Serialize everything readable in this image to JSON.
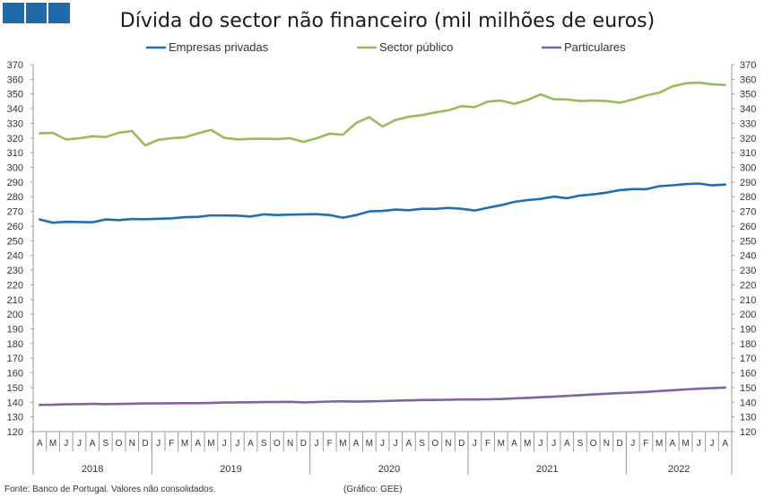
{
  "colors": {
    "logo": "#1f6aa8",
    "empresas": "#1f6fb2",
    "sector": "#9bbb59",
    "particulares": "#8064a2",
    "axis": "#999999"
  },
  "footer": {
    "source": "Fonte: Banco de Portugal. Valores não consolidados.",
    "credit": "(Gráfico: GEE)"
  },
  "chart_data": {
    "type": "line",
    "title": "Dívida do sector não financeiro (mil milhões de euros)",
    "xlabel": "",
    "ylabel": "",
    "ylim": [
      120,
      370
    ],
    "yticks": [
      120,
      130,
      140,
      150,
      160,
      170,
      180,
      190,
      200,
      210,
      220,
      230,
      240,
      250,
      260,
      270,
      280,
      290,
      300,
      310,
      320,
      330,
      340,
      350,
      360,
      370
    ],
    "grid": false,
    "legend": "top",
    "x": [
      "A",
      "M",
      "J",
      "J",
      "A",
      "S",
      "O",
      "N",
      "D",
      "J",
      "F",
      "M",
      "A",
      "M",
      "J",
      "J",
      "A",
      "S",
      "O",
      "N",
      "D",
      "J",
      "F",
      "M",
      "A",
      "M",
      "J",
      "J",
      "A",
      "S",
      "O",
      "N",
      "D",
      "J",
      "F",
      "M",
      "A",
      "M",
      "J",
      "J",
      "A",
      "S",
      "O",
      "N",
      "D",
      "J",
      "F",
      "M",
      "A",
      "M",
      "J",
      "J",
      "A"
    ],
    "years": [
      {
        "label": "2018",
        "start": 0,
        "end": 8
      },
      {
        "label": "2019",
        "start": 9,
        "end": 20
      },
      {
        "label": "2020",
        "start": 21,
        "end": 32
      },
      {
        "label": "2021",
        "start": 33,
        "end": 44
      },
      {
        "label": "2022",
        "start": 45,
        "end": 52
      }
    ],
    "series": [
      {
        "name": "Empresas privadas",
        "color_key": "empresas",
        "values": [
          264.5,
          262.3,
          262.9,
          262.8,
          262.6,
          264.5,
          264.1,
          264.8,
          264.7,
          265.0,
          265.3,
          266.0,
          266.3,
          267.3,
          267.2,
          267.1,
          266.5,
          268.0,
          267.5,
          267.8,
          268.0,
          268.1,
          267.5,
          265.7,
          267.5,
          270.0,
          270.3,
          271.2,
          270.8,
          271.8,
          271.7,
          272.4,
          271.8,
          270.6,
          272.5,
          274.2,
          276.5,
          277.7,
          278.5,
          280.1,
          279.0,
          280.8,
          281.6,
          282.8,
          284.5,
          285.2,
          285.1,
          287.2,
          287.8,
          288.6,
          289.0,
          287.7,
          288.3
        ]
      },
      {
        "name": "Sector público",
        "color_key": "sector",
        "values": [
          323.2,
          323.5,
          319.0,
          319.8,
          321.2,
          320.6,
          323.6,
          324.7,
          315.0,
          318.8,
          319.8,
          320.4,
          323.2,
          325.5,
          320.1,
          319.1,
          319.4,
          319.5,
          319.3,
          319.9,
          317.4,
          319.8,
          323.0,
          322.2,
          330.2,
          334.2,
          327.8,
          332.3,
          334.5,
          335.6,
          337.4,
          338.8,
          341.7,
          341.0,
          344.8,
          345.5,
          343.2,
          345.9,
          349.7,
          346.4,
          346.3,
          345.2,
          345.5,
          345.2,
          344.0,
          346.2,
          349.0,
          350.8,
          355.2,
          357.3,
          357.7,
          356.6,
          356.1
        ]
      },
      {
        "name": "Particulares",
        "color_key": "particulares",
        "values": [
          138.2,
          138.3,
          138.6,
          138.7,
          138.9,
          138.7,
          138.8,
          139.0,
          139.2,
          139.2,
          139.3,
          139.4,
          139.4,
          139.5,
          139.8,
          139.9,
          140.0,
          140.1,
          140.2,
          140.3,
          139.9,
          140.2,
          140.5,
          140.6,
          140.4,
          140.6,
          140.8,
          141.0,
          141.3,
          141.5,
          141.6,
          141.7,
          141.9,
          141.9,
          142.0,
          142.2,
          142.6,
          143.0,
          143.4,
          143.8,
          144.3,
          144.8,
          145.3,
          145.8,
          146.2,
          146.6,
          147.0,
          147.6,
          148.2,
          148.7,
          149.2,
          149.6,
          150.0
        ]
      }
    ]
  }
}
